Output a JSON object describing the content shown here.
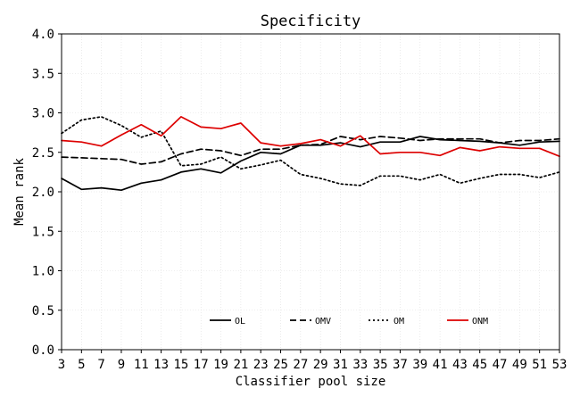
{
  "chart_data": {
    "type": "line",
    "title": "Specificity",
    "xlabel": "Classifier pool size",
    "ylabel": "Mean rank",
    "xlim": [
      3,
      53
    ],
    "ylim": [
      0.0,
      4.0
    ],
    "xticks": [
      "3",
      "5",
      "7",
      "9",
      "11",
      "13",
      "15",
      "17",
      "19",
      "21",
      "23",
      "25",
      "27",
      "29",
      "31",
      "33",
      "35",
      "37",
      "39",
      "41",
      "43",
      "45",
      "47",
      "49",
      "51",
      "53"
    ],
    "yticks": [
      "0.0",
      "0.5",
      "1.0",
      "1.5",
      "2.0",
      "2.5",
      "3.0",
      "3.5",
      "4.0"
    ],
    "grid": true,
    "legend_position": "lower-center",
    "x": [
      3,
      5,
      7,
      9,
      11,
      13,
      15,
      17,
      19,
      21,
      23,
      25,
      27,
      29,
      31,
      33,
      35,
      37,
      39,
      41,
      43,
      45,
      47,
      49,
      51,
      53
    ],
    "series": [
      {
        "name": "OL",
        "color": "#000000",
        "dash": "solid",
        "values": [
          2.17,
          2.03,
          2.05,
          2.02,
          2.11,
          2.15,
          2.25,
          2.29,
          2.24,
          2.39,
          2.5,
          2.48,
          2.59,
          2.59,
          2.62,
          2.57,
          2.63,
          2.63,
          2.7,
          2.66,
          2.65,
          2.64,
          2.62,
          2.59,
          2.63,
          2.64
        ]
      },
      {
        "name": "OMV",
        "color": "#000000",
        "dash": "dashed",
        "values": [
          2.44,
          2.43,
          2.42,
          2.41,
          2.35,
          2.38,
          2.48,
          2.54,
          2.52,
          2.46,
          2.54,
          2.54,
          2.59,
          2.6,
          2.7,
          2.66,
          2.7,
          2.68,
          2.65,
          2.67,
          2.67,
          2.67,
          2.62,
          2.65,
          2.65,
          2.67
        ]
      },
      {
        "name": "OM",
        "color": "#000000",
        "dash": "dotted",
        "values": [
          2.74,
          2.91,
          2.95,
          2.84,
          2.69,
          2.77,
          2.33,
          2.35,
          2.44,
          2.29,
          2.34,
          2.4,
          2.22,
          2.17,
          2.1,
          2.08,
          2.2,
          2.2,
          2.15,
          2.22,
          2.11,
          2.17,
          2.22,
          2.22,
          2.18,
          2.25
        ]
      },
      {
        "name": "ONM",
        "color": "#dd0000",
        "dash": "solid",
        "values": [
          2.65,
          2.63,
          2.58,
          2.72,
          2.85,
          2.71,
          2.95,
          2.82,
          2.8,
          2.87,
          2.62,
          2.58,
          2.61,
          2.66,
          2.58,
          2.71,
          2.48,
          2.5,
          2.5,
          2.46,
          2.56,
          2.52,
          2.57,
          2.55,
          2.55,
          2.45
        ]
      }
    ]
  }
}
